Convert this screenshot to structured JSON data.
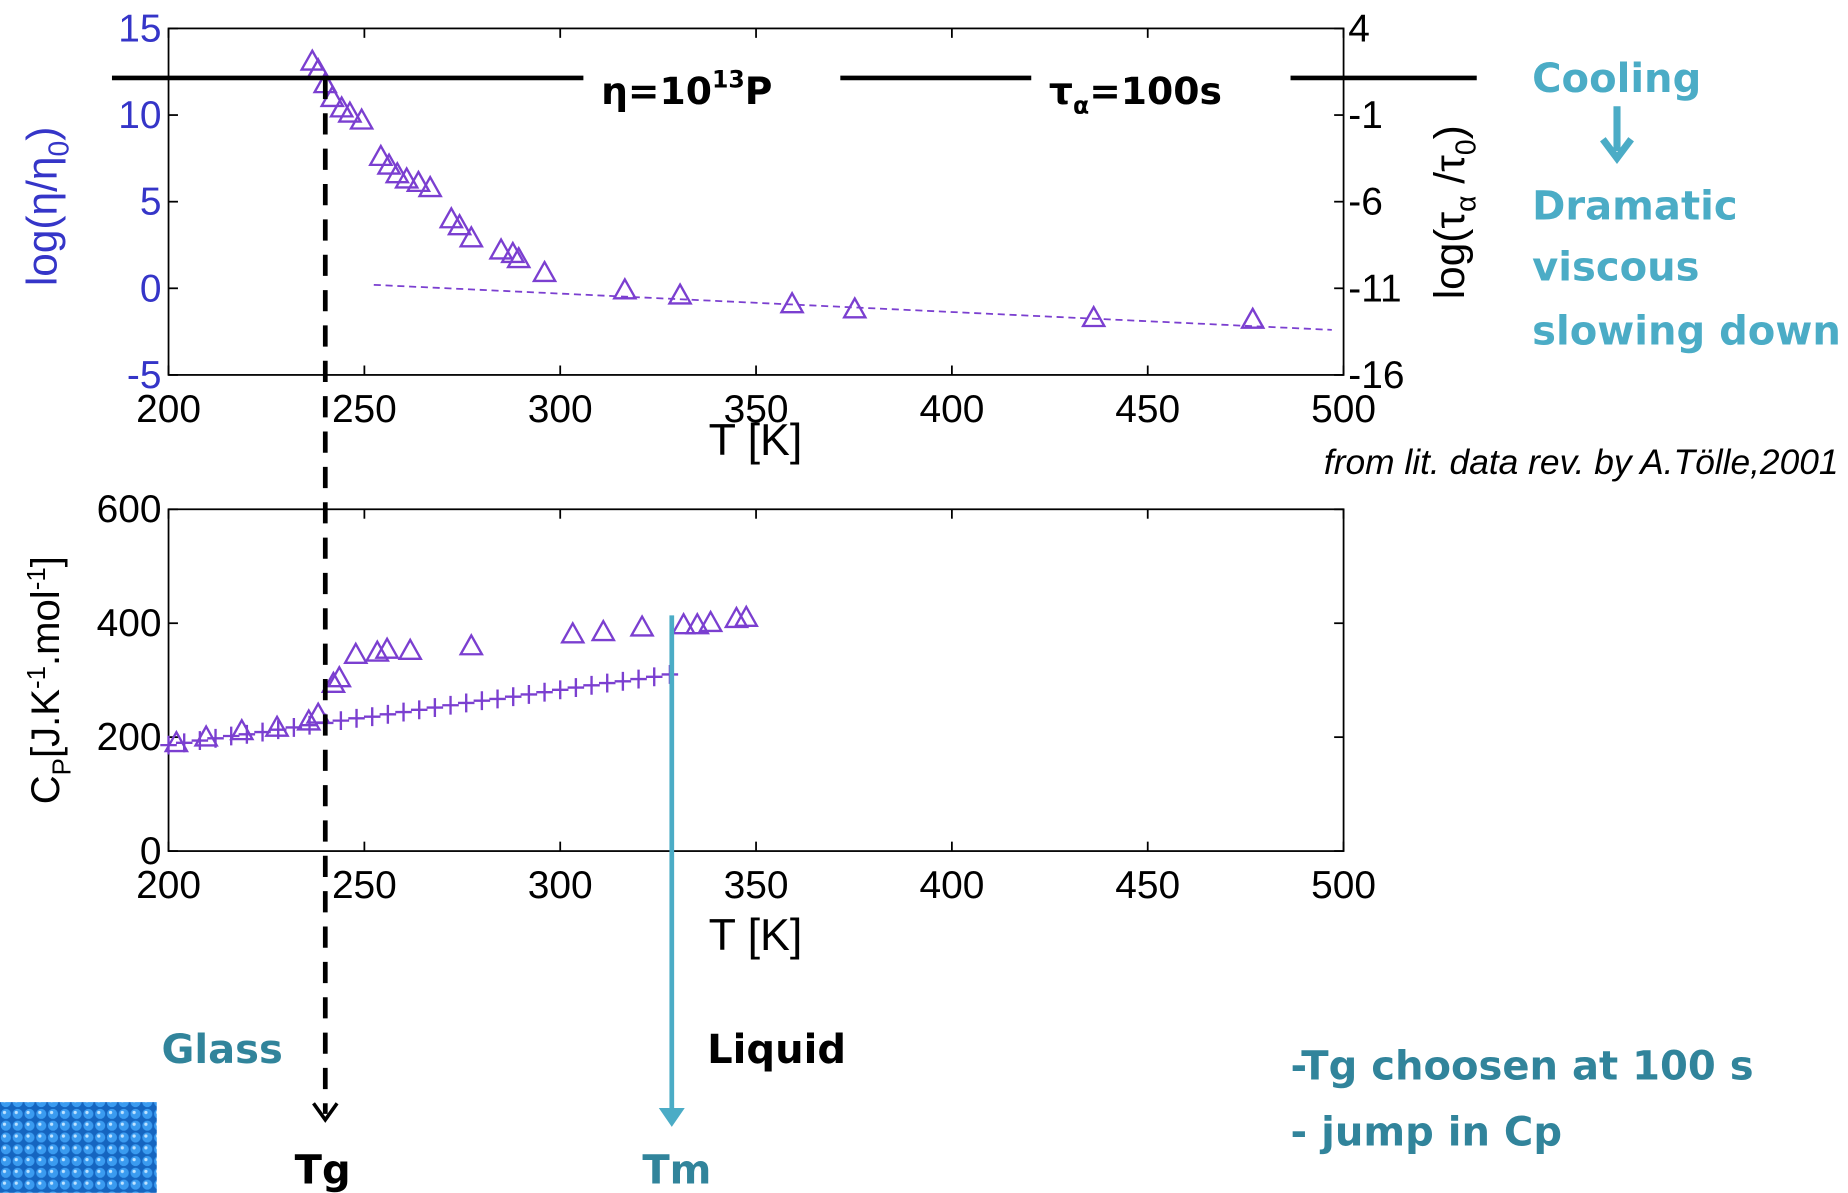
{
  "chart_data": [
    {
      "type": "scatter",
      "x_label": "T [K]",
      "y_label": [
        "log(η/η",
        "0",
        ")"
      ],
      "y2_label": [
        "log(τ",
        "α",
        " /τ",
        "0",
        ")"
      ],
      "xlim": [
        200,
        500
      ],
      "ylim": [
        -5,
        15
      ],
      "y2lim": [
        -16,
        4
      ],
      "xticks": [
        200,
        250,
        300,
        350,
        400,
        450,
        500
      ],
      "yticks": [
        15,
        10,
        5,
        0,
        -5
      ],
      "y2ticks": [
        4,
        -1,
        -6,
        -11,
        -16
      ],
      "series": [
        {
          "color": "#7b3fd0",
          "marker": "triangle",
          "x": [
            236.7,
            238.2,
            240,
            241.8,
            244.2,
            246.3,
            249.3,
            254.2,
            256.3,
            258.4,
            260.8,
            263.8,
            266.8,
            272.2,
            274.3,
            277.3,
            284.9,
            287.9,
            289.4,
            296,
            316.5,
            330.6,
            359.2,
            375.2,
            436.2,
            476.8
          ],
          "values": [
            13.1,
            12.6,
            11.8,
            11,
            10.4,
            10.1,
            9.7,
            7.6,
            7.1,
            6.6,
            6.3,
            6.1,
            5.8,
            4.0,
            3.6,
            2.9,
            2.2,
            2.0,
            1.7,
            0.9,
            -0.1,
            -0.4,
            -0.9,
            -1.2,
            -1.7,
            -1.8
          ]
        }
      ],
      "trend": {
        "color": "#7b3fd0",
        "x": [
          252.4,
          497
        ],
        "values": [
          0.2,
          -2.4
        ]
      },
      "eta_label": [
        "η=10",
        "13",
        "P"
      ],
      "tau_label": [
        "τ",
        "α",
        "=100s"
      ]
    },
    {
      "type": "scatter",
      "x_label": "T [K]",
      "y_label": [
        "C",
        "P",
        "[J.K",
        "-1",
        ".mol",
        "-1",
        "]"
      ],
      "xlim": [
        200,
        500
      ],
      "ylim": [
        0,
        600
      ],
      "xticks": [
        200,
        250,
        300,
        350,
        400,
        450,
        500
      ],
      "yticks": [
        0,
        200,
        400,
        600
      ],
      "series": [
        {
          "color": "#7b3fd0",
          "marker": "triangle",
          "x": [
            202,
            209.6,
            218.7,
            227.7,
            235.8,
            238.2,
            242.1,
            243.6,
            247.8,
            253.3,
            255.8,
            261.7,
            277.3,
            303.2,
            311,
            320.9,
            331.5,
            335,
            338.4,
            345,
            347.5
          ],
          "values": [
            190,
            200,
            211,
            217,
            228,
            240,
            294,
            304,
            345,
            349,
            354,
            352,
            360,
            381,
            385,
            393,
            397,
            397,
            401,
            408,
            410
          ]
        },
        {
          "color": "#7b3fd0",
          "marker": "plus",
          "x": [
            200,
            204,
            208,
            212,
            216,
            220,
            224,
            228,
            232,
            236,
            240,
            244,
            248,
            252,
            256,
            260,
            264,
            268,
            272,
            276,
            280,
            284,
            288,
            292,
            296,
            300,
            304,
            308,
            312,
            316,
            320,
            324,
            328
          ],
          "values": [
            186,
            190,
            194,
            198,
            202,
            205,
            209,
            213,
            217,
            221,
            225,
            229,
            233,
            236,
            240,
            244,
            248,
            252,
            256,
            260,
            264,
            267,
            271,
            275,
            279,
            283,
            287,
            291,
            295,
            298,
            302,
            306,
            310
          ]
        }
      ]
    }
  ],
  "annotations": {
    "cooling": "Cooling",
    "dramatic": [
      "Dramatic",
      "viscous",
      "slowing down"
    ],
    "source": "from lit. data rev. by A.Tölle,2001",
    "glass": "Glass",
    "liquid": "Liquid",
    "tg": "Tg",
    "tm": "Tm",
    "notes": [
      "-Tg choosen at 100 s",
      "- jump in Cp"
    ]
  }
}
